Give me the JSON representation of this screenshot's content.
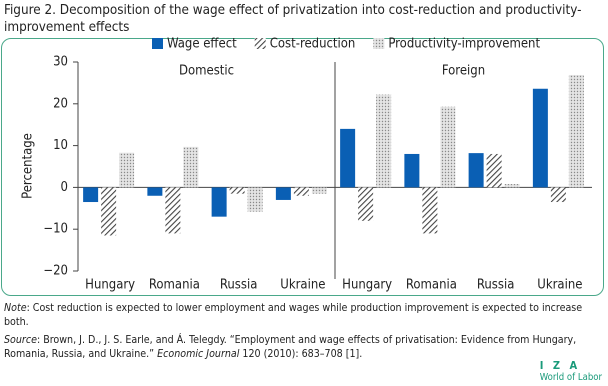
{
  "chart_data": {
    "type": "bar",
    "title": "Figure 2. Decomposition of the wage effect of privatization into cost-reduction and productivity-improvement effects",
    "panels": [
      "Domestic",
      "Foreign"
    ],
    "categories": [
      "Hungary",
      "Romania",
      "Russia",
      "Ukraine",
      "Hungary",
      "Romania",
      "Russia",
      "Ukraine"
    ],
    "series": [
      {
        "name": "Wage effect",
        "color": "#0a5fb4",
        "pattern": "solid",
        "values": [
          -3.5,
          -2,
          -7,
          -3,
          14,
          8,
          8.2,
          23.6
        ]
      },
      {
        "name": "Cost-reduction",
        "color": "#444444",
        "pattern": "hatch",
        "values": [
          -11.5,
          -11,
          -1.5,
          -2,
          -8,
          -11,
          8,
          -3.5
        ]
      },
      {
        "name": "Productivity-improvement",
        "color": "#888888",
        "pattern": "dots",
        "values": [
          8.3,
          9.7,
          -5.8,
          -1.5,
          22.2,
          19.3,
          0.8,
          26.9
        ]
      }
    ],
    "ylabel": "Percentage",
    "ylim": [
      -20,
      30
    ],
    "yticks": [
      {
        "value": -20,
        "label": "−20"
      },
      {
        "value": -10,
        "label": "−10"
      },
      0,
      10,
      20,
      30
    ]
  },
  "note": {
    "label": "Note",
    "text": ": Cost reduction is expected to lower employment and wages while production improvement is expected to increase both."
  },
  "source": {
    "label": "Source",
    "text": ": Brown, J. D., J. S. Earle, and Á. Telegdy. “Employment and wage effects of privatisation: Evidence from Hungary, Romania, Russia, and Ukraine.” ",
    "journal": "Economic Journal",
    "rest": " 120 (2010): 683–708 [1]."
  },
  "logo": {
    "mark": "I Z A",
    "text": "World of Labor"
  }
}
